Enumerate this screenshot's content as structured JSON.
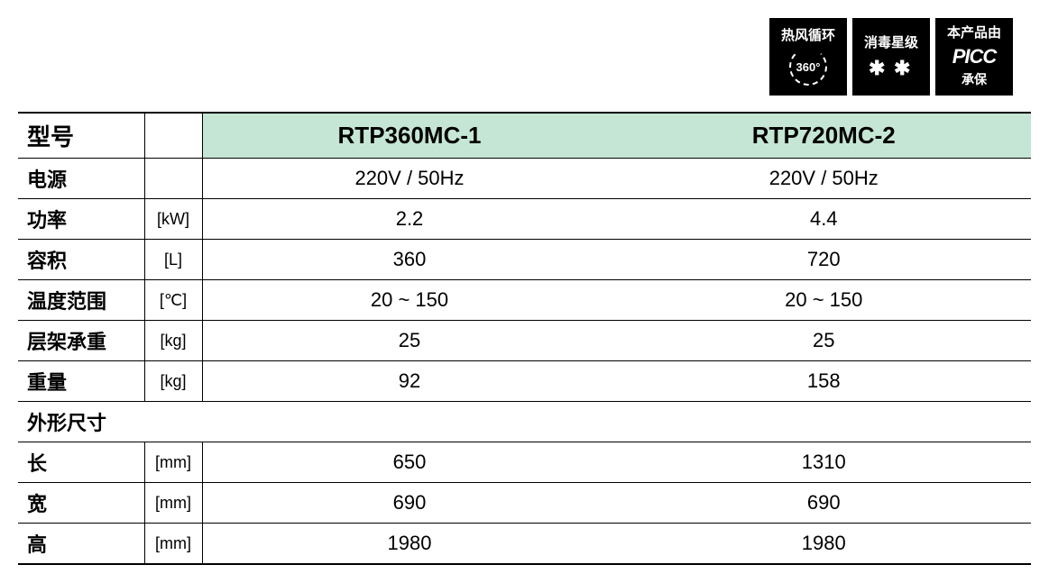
{
  "badges": {
    "b1": {
      "title": "热风循环",
      "icon_text": "360°"
    },
    "b2": {
      "title": "消毒星级"
    },
    "b3": {
      "title": "本产品由",
      "brand": "PICC",
      "sub": "承保"
    }
  },
  "table": {
    "header_label": "型号",
    "models": [
      "RTP360MC-1",
      "RTP720MC-2"
    ],
    "rows": [
      {
        "label": "电源",
        "unit": "",
        "v1": "220V / 50Hz",
        "v2": "220V / 50Hz"
      },
      {
        "label": "功率",
        "unit": "[kW]",
        "v1": "2.2",
        "v2": "4.4"
      },
      {
        "label": "容积",
        "unit": "[L]",
        "v1": "360",
        "v2": "720"
      },
      {
        "label": "温度范围",
        "unit": "[℃]",
        "v1": "20 ~ 150",
        "v2": "20 ~ 150"
      },
      {
        "label": "层架承重",
        "unit": "[kg]",
        "v1": "25",
        "v2": "25"
      },
      {
        "label": "重量",
        "unit": "[kg]",
        "v1": "92",
        "v2": "158"
      }
    ],
    "section_label": "外形尺寸",
    "dim_rows": [
      {
        "label": "长",
        "unit": "[mm]",
        "v1": "650",
        "v2": "1310"
      },
      {
        "label": "宽",
        "unit": "[mm]",
        "v1": "690",
        "v2": "690"
      },
      {
        "label": "高",
        "unit": "[mm]",
        "v1": "1980",
        "v2": "1980"
      }
    ]
  },
  "style": {
    "header_bg": "#c5e6d4",
    "border_color": "#000000",
    "page_bg": "#ffffff",
    "header_fontsize_pt": 20,
    "cell_fontsize_pt": 16
  }
}
